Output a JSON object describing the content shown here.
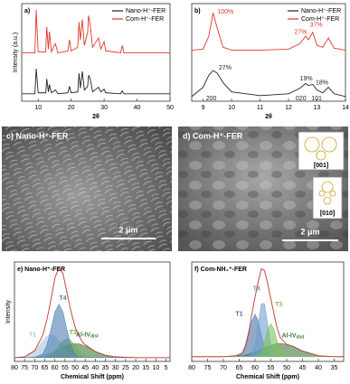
{
  "chart_data": [
    {
      "type": "line",
      "title": "a)",
      "xlabel": "2θ",
      "ylabel": "Intensity (a.u.)",
      "x": [
        5,
        9,
        9.4,
        10,
        12.3,
        12.6,
        13.1,
        13.4,
        14,
        15.2,
        16,
        19,
        19.5,
        20,
        22,
        22.4,
        22.8,
        23.4,
        24,
        25,
        25.3,
        25.8,
        26.5,
        28.3,
        29,
        30,
        30.5,
        31,
        35,
        35.5,
        36,
        50
      ],
      "xlim": [
        5,
        50
      ],
      "xticks": [
        10,
        20,
        30,
        40,
        50
      ],
      "ylim": [
        0,
        105
      ],
      "legend": "upper right",
      "series": [
        {
          "name": "Nano-H⁺-FER",
          "color": "#222222",
          "values": [
            8,
            8,
            35,
            9,
            9,
            24,
            10,
            18,
            9,
            12,
            8,
            9,
            16,
            9,
            10,
            30,
            14,
            32,
            12,
            16,
            28,
            24,
            10,
            15,
            10,
            13,
            9,
            9,
            8,
            11,
            8,
            8
          ]
        },
        {
          "name": "Com-H⁺-FER",
          "color": "#e0362c",
          "values": [
            52,
            52,
            98,
            53,
            53,
            80,
            56,
            75,
            53,
            62,
            52,
            54,
            66,
            54,
            58,
            85,
            66,
            88,
            60,
            74,
            92,
            82,
            58,
            68,
            56,
            64,
            54,
            54,
            52,
            60,
            52,
            52
          ]
        }
      ]
    },
    {
      "type": "line",
      "title": "b)",
      "xlabel": "2θ",
      "x": [
        8.6,
        9.0,
        9.2,
        9.35,
        9.5,
        9.7,
        10,
        11,
        12,
        12.4,
        12.6,
        12.7,
        12.85,
        13,
        13.2,
        13.4,
        13.6,
        14
      ],
      "xlim": [
        8.6,
        14
      ],
      "xticks": [
        9,
        10,
        11,
        12,
        13,
        14
      ],
      "ylim": [
        0,
        105
      ],
      "legend": "upper right",
      "series": [
        {
          "name": "Nano-H⁺-FER",
          "color": "#222222",
          "values": [
            5,
            15,
            28,
            33,
            30,
            20,
            10,
            6,
            8,
            14,
            19,
            17,
            18,
            12,
            9,
            15,
            8,
            5
          ]
        },
        {
          "name": "Com-H⁺-FER",
          "color": "#e0362c",
          "values": [
            55,
            56,
            70,
            95,
            78,
            58,
            55,
            55,
            56,
            62,
            70,
            66,
            74,
            60,
            58,
            68,
            57,
            55
          ]
        }
      ],
      "annotations": [
        {
          "text": "100%",
          "x": 9.5,
          "y": 96,
          "color": "#e0362c"
        },
        {
          "text": "27%",
          "x": 12.2,
          "y": 74,
          "color": "#e0362c"
        },
        {
          "text": "37%",
          "x": 12.75,
          "y": 82,
          "color": "#e0362c"
        },
        {
          "text": "27%",
          "x": 9.55,
          "y": 36,
          "color": "#222222"
        },
        {
          "text": "19%",
          "x": 12.4,
          "y": 24,
          "color": "#222222"
        },
        {
          "text": "18%",
          "x": 12.95,
          "y": 20,
          "color": "#222222"
        },
        {
          "text": "200",
          "x": 9.1,
          "y": 3,
          "color": "#222222"
        },
        {
          "text": "020",
          "x": 12.25,
          "y": 3,
          "color": "#222222"
        },
        {
          "text": "101",
          "x": 12.8,
          "y": 3,
          "color": "#222222"
        }
      ]
    },
    {
      "type": "line",
      "title": "e) Nano-H⁺-FER",
      "xlabel": "Chemical Shift (ppm)",
      "ylabel": "Intensity",
      "x": [
        80,
        75,
        70,
        66,
        64,
        62,
        60,
        58,
        56,
        54,
        52,
        50,
        48,
        46,
        44,
        40,
        35,
        30,
        20,
        10,
        3
      ],
      "xlim": [
        80,
        3
      ],
      "xticks": [
        80,
        75,
        70,
        65,
        60,
        55,
        50,
        45,
        40,
        35,
        30,
        25,
        20,
        15,
        10,
        5
      ],
      "ylim": [
        -5,
        125
      ],
      "series": [
        {
          "name": "Al-IV",
          "name_sub": "dist",
          "color": "#3f7a3a",
          "fill": true,
          "label_pos": [
            44,
            30
          ],
          "values": [
            0,
            0,
            1,
            2,
            4,
            6,
            8,
            11,
            14,
            16,
            18,
            18,
            18,
            16,
            14,
            8,
            3,
            1,
            0,
            0,
            0
          ]
        },
        {
          "name": "T1",
          "color": "#a9c5e0",
          "fill": true,
          "label_pos": [
            71,
            30
          ],
          "values": [
            0,
            1,
            8,
            22,
            28,
            30,
            28,
            22,
            15,
            8,
            4,
            2,
            1,
            0,
            0,
            0,
            0,
            0,
            0,
            0,
            0
          ]
        },
        {
          "name": "T3",
          "color": "#6db34f",
          "fill": true,
          "label_pos": [
            51,
            33
          ],
          "values": [
            0,
            0,
            0,
            0,
            1,
            3,
            8,
            15,
            22,
            25,
            22,
            15,
            8,
            3,
            1,
            0,
            0,
            0,
            0,
            0,
            0
          ]
        },
        {
          "name": "T4",
          "color": "#4f7fb0",
          "fill": true,
          "label_pos": [
            56,
            78
          ],
          "values": [
            0,
            0,
            0,
            5,
            16,
            36,
            60,
            70,
            60,
            36,
            16,
            5,
            1,
            0,
            0,
            0,
            0,
            0,
            0,
            0,
            0
          ]
        },
        {
          "color": "#c0392b",
          "values": [
            0,
            1,
            9,
            29,
            49,
            75,
            104,
            118,
            110,
            85,
            60,
            40,
            28,
            19,
            15,
            8,
            3,
            1,
            0,
            0,
            0
          ]
        }
      ]
    },
    {
      "type": "line",
      "title": "f) Com-NH₄⁺-FER",
      "xlabel": "Chemical Shift (ppm)",
      "x": [
        80,
        70,
        66,
        64,
        63,
        62,
        61,
        60,
        59,
        58,
        57,
        56,
        55,
        54,
        53,
        52,
        50,
        48,
        45,
        40,
        35,
        32
      ],
      "xlim": [
        80,
        32
      ],
      "xticks": [
        80,
        75,
        70,
        65,
        60,
        55,
        50,
        45,
        40,
        35
      ],
      "ylim": [
        -5,
        100
      ],
      "series": [
        {
          "name": "Al-IV",
          "name_sub": "dist",
          "color": "#3f7a3a",
          "fill": true,
          "label_pos": [
            48,
            22
          ],
          "values": [
            0,
            0,
            1,
            1,
            2,
            3,
            4,
            5,
            6,
            8,
            9,
            11,
            12,
            13,
            14,
            14,
            13,
            11,
            6,
            1,
            0,
            0
          ]
        },
        {
          "name": "T1",
          "color": "#4a6fa5",
          "fill": true,
          "label_pos": [
            65,
            45
          ],
          "values": [
            0,
            0,
            0,
            3,
            10,
            23,
            38,
            45,
            38,
            23,
            10,
            3,
            1,
            0,
            0,
            0,
            0,
            0,
            0,
            0,
            0,
            0
          ]
        },
        {
          "name": "T4",
          "color": "#6fa0d0",
          "fill": true,
          "label_pos": [
            59.5,
            72
          ],
          "values": [
            0,
            0,
            0,
            0,
            0,
            0,
            3,
            13,
            34,
            56,
            56,
            34,
            13,
            3,
            0,
            0,
            0,
            0,
            0,
            0,
            0,
            0
          ]
        },
        {
          "name": "T3",
          "color": "#7cc15a",
          "fill": true,
          "label_pos": [
            52.5,
            55
          ],
          "values": [
            0,
            0,
            0,
            0,
            0,
            0,
            0,
            0,
            1,
            6,
            16,
            29,
            35,
            29,
            16,
            6,
            0,
            0,
            0,
            0,
            0,
            0
          ]
        },
        {
          "color": "#c0392b",
          "values": [
            0,
            0,
            1,
            4,
            12,
            26,
            45,
            63,
            79,
            93,
            91,
            77,
            61,
            45,
            30,
            20,
            13,
            11,
            6,
            1,
            0,
            0
          ]
        }
      ]
    }
  ],
  "panels": {
    "c": {
      "label": "c) Nano-H⁺-FER",
      "scale_bar": "2 μm"
    },
    "d": {
      "label": "d) Com-H⁺-FER",
      "scale_bar": "2 μm",
      "projections": [
        "[001]",
        "[010]"
      ]
    }
  }
}
